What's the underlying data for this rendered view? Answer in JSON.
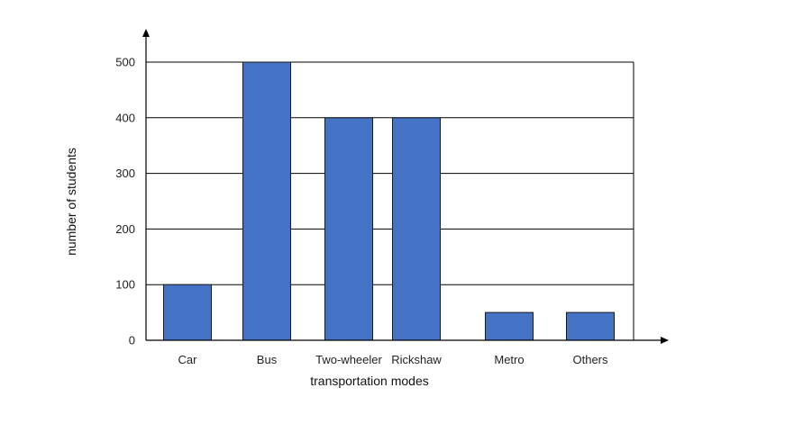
{
  "chart_data": {
    "type": "bar",
    "categories": [
      "Car",
      "Bus",
      "Two-wheeler",
      "Rickshaw",
      "Metro",
      "Others"
    ],
    "values": [
      100,
      500,
      400,
      400,
      50,
      50
    ],
    "xlabel": "transportation modes",
    "ylabel": "number of students",
    "ylim": [
      0,
      500
    ],
    "yticks": [
      0,
      100,
      200,
      300,
      400,
      500
    ],
    "grid": true,
    "bar_color": "#4472C4",
    "bar_edge_color": "#1a1a1a"
  }
}
